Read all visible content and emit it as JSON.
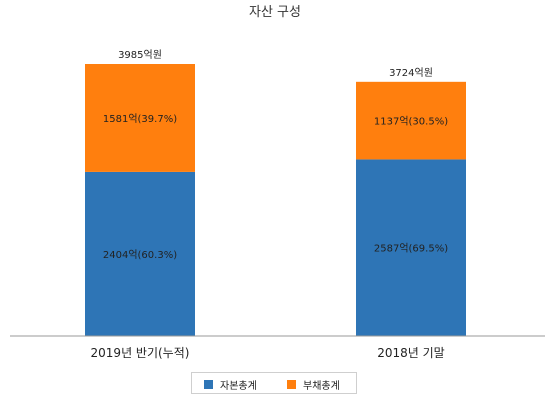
{
  "chart_data": {
    "type": "bar",
    "stacked": true,
    "title": "자산 구성",
    "categories": [
      "2019년 반기(누적)",
      "2018년 기말"
    ],
    "totals": [
      "3985억원",
      "3724억원"
    ],
    "total_values": [
      3985,
      3724
    ],
    "series": [
      {
        "name": "자본총계",
        "color": "#2e75b6",
        "values": [
          2404,
          2587
        ],
        "labels": [
          "2404억(60.3%)",
          "2587억(69.5%)"
        ]
      },
      {
        "name": "부채총계",
        "color": "#ff7f0e",
        "values": [
          1581,
          1137
        ],
        "labels": [
          "1581억(39.7%)",
          "1137억(30.5%)"
        ]
      }
    ],
    "ylim": [
      0,
      3985
    ],
    "grid": false,
    "legend_position": "bottom"
  }
}
